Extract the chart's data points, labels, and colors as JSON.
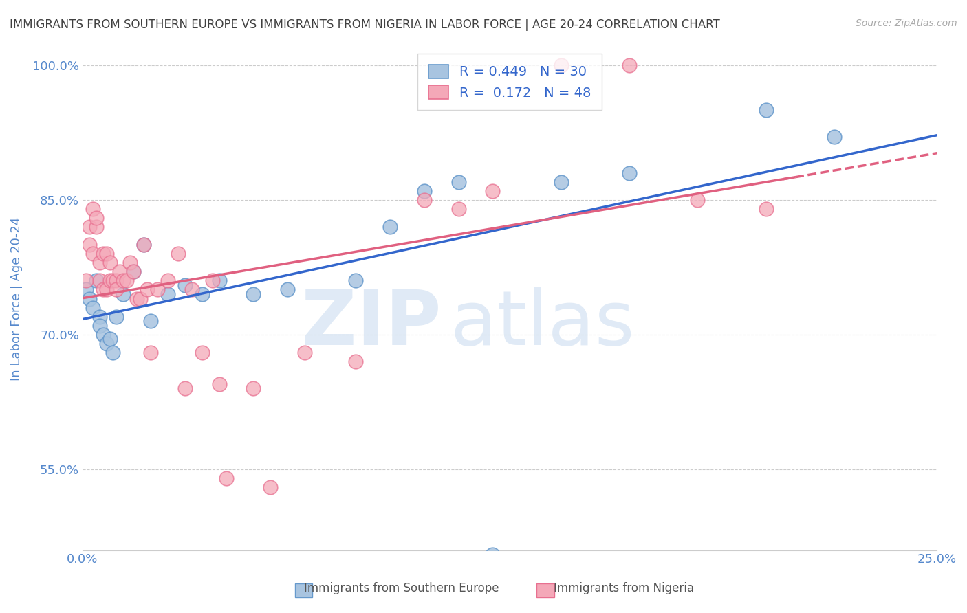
{
  "title": "IMMIGRANTS FROM SOUTHERN EUROPE VS IMMIGRANTS FROM NIGERIA IN LABOR FORCE | AGE 20-24 CORRELATION CHART",
  "source": "Source: ZipAtlas.com",
  "xlabel": "",
  "ylabel": "In Labor Force | Age 20-24",
  "xlim": [
    0.0,
    0.25
  ],
  "ylim": [
    0.46,
    1.02
  ],
  "xticks": [
    0.0,
    0.05,
    0.1,
    0.15,
    0.2,
    0.25
  ],
  "xtick_labels": [
    "0.0%",
    "",
    "",
    "",
    "",
    "25.0%"
  ],
  "ytick_labels": [
    "55.0%",
    "70.0%",
    "85.0%",
    "100.0%"
  ],
  "yticks": [
    0.55,
    0.7,
    0.85,
    1.0
  ],
  "blue_R": 0.449,
  "blue_N": 30,
  "pink_R": 0.172,
  "pink_N": 48,
  "blue_color": "#a8c4e0",
  "pink_color": "#f4a8b8",
  "blue_edge": "#6699cc",
  "pink_edge": "#e87090",
  "blue_line_color": "#3366cc",
  "pink_line_color": "#e06080",
  "legend_label_blue": "Immigrants from Southern Europe",
  "legend_label_pink": "Immigrants from Nigeria",
  "background_color": "#ffffff",
  "grid_color": "#cccccc",
  "title_color": "#404040",
  "axis_label_color": "#5588cc",
  "blue_x": [
    0.001,
    0.002,
    0.003,
    0.004,
    0.005,
    0.005,
    0.006,
    0.007,
    0.008,
    0.009,
    0.01,
    0.012,
    0.015,
    0.018,
    0.02,
    0.025,
    0.03,
    0.035,
    0.04,
    0.05,
    0.06,
    0.08,
    0.09,
    0.1,
    0.11,
    0.12,
    0.14,
    0.16,
    0.2,
    0.22
  ],
  "blue_y": [
    0.75,
    0.74,
    0.73,
    0.76,
    0.72,
    0.71,
    0.7,
    0.69,
    0.695,
    0.68,
    0.72,
    0.745,
    0.77,
    0.8,
    0.715,
    0.745,
    0.755,
    0.745,
    0.76,
    0.745,
    0.75,
    0.76,
    0.82,
    0.86,
    0.87,
    0.455,
    0.87,
    0.88,
    0.95,
    0.92
  ],
  "pink_x": [
    0.001,
    0.002,
    0.002,
    0.003,
    0.003,
    0.004,
    0.004,
    0.005,
    0.005,
    0.006,
    0.006,
    0.007,
    0.007,
    0.008,
    0.008,
    0.009,
    0.01,
    0.01,
    0.011,
    0.012,
    0.013,
    0.014,
    0.015,
    0.016,
    0.017,
    0.018,
    0.019,
    0.02,
    0.022,
    0.025,
    0.028,
    0.03,
    0.032,
    0.035,
    0.038,
    0.04,
    0.042,
    0.05,
    0.055,
    0.065,
    0.08,
    0.1,
    0.11,
    0.12,
    0.14,
    0.16,
    0.18,
    0.2
  ],
  "pink_y": [
    0.76,
    0.8,
    0.82,
    0.79,
    0.84,
    0.82,
    0.83,
    0.78,
    0.76,
    0.79,
    0.75,
    0.79,
    0.75,
    0.78,
    0.76,
    0.76,
    0.76,
    0.75,
    0.77,
    0.76,
    0.76,
    0.78,
    0.77,
    0.74,
    0.74,
    0.8,
    0.75,
    0.68,
    0.75,
    0.76,
    0.79,
    0.64,
    0.75,
    0.68,
    0.76,
    0.645,
    0.54,
    0.64,
    0.53,
    0.68,
    0.67,
    0.85,
    0.84,
    0.86,
    1.0,
    1.0,
    0.85,
    0.84
  ]
}
